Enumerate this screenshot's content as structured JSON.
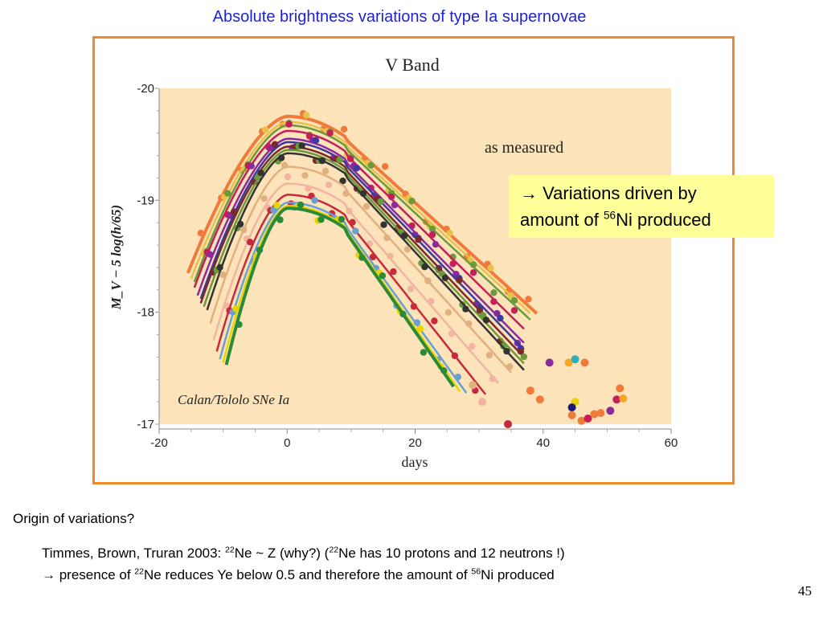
{
  "slide": {
    "title": "Absolute brightness variations of type Ia supernovae",
    "question": "Origin of variations?",
    "page_number": "45"
  },
  "callout": {
    "arrow": "→",
    "line1": "Variations driven by",
    "line2_prefix": "amount of ",
    "isotope_mass": "56",
    "isotope_symbol": "Ni",
    "line2_suffix": " produced"
  },
  "notes": {
    "line1": {
      "lead": "Timmes, Brown, Truran 2003: ",
      "iso1_mass": "22",
      "iso1_rest": "Ne ~ Z    (why?)  (",
      "iso2_mass": "22",
      "iso2_rest": "Ne has 10 protons and 12 neutrons !)"
    },
    "line2": {
      "arrow": "→",
      "lead": " presence of ",
      "iso1_mass": "22",
      "iso1_rest": "Ne reduces Ye below 0.5 and therefore the amount of ",
      "iso2_mass": "56",
      "iso2_rest": "Ni produced"
    }
  },
  "colors": {
    "title": "#1f23d6",
    "frame": "#f0882e",
    "plot_background": "#fde3b9",
    "callout_background": "#ffff99"
  },
  "chart_data": {
    "type": "line",
    "title": "V Band",
    "annotation": "as measured",
    "source_label": "Calan/Tololo SNe Ia",
    "xlabel": "days",
    "ylabel": "M_V − 5 log(h/65)",
    "xlim": [
      -20,
      60
    ],
    "ylim": [
      -20,
      -17
    ],
    "y_inverted": true,
    "grid": false,
    "x_ticks": [
      -20,
      0,
      20,
      40,
      60
    ],
    "y_ticks": [
      -20,
      -19,
      -18,
      -17
    ],
    "x_tick_labels": [
      "-20",
      "0",
      "20",
      "40",
      "60"
    ],
    "y_tick_labels": [
      "-20",
      "-19",
      "-18",
      "-17"
    ],
    "series": [
      {
        "color": "#f07a3a",
        "peak": -19.75,
        "t0": -15.5,
        "t_end": 39,
        "decline": 0.052
      },
      {
        "color": "#e8c14a",
        "peak": -19.7,
        "t0": -15,
        "t_end": 38,
        "decline": 0.052
      },
      {
        "color": "#6a9a3a",
        "peak": -19.67,
        "t0": -14.5,
        "t_end": 38,
        "decline": 0.053
      },
      {
        "color": "#c41e5b",
        "peak": -19.62,
        "t0": -14.5,
        "t_end": 37,
        "decline": 0.056
      },
      {
        "color": "#8a2aa0",
        "peak": -19.55,
        "t0": -14,
        "t_end": 37,
        "decline": 0.058
      },
      {
        "color": "#3a3aa0",
        "peak": -19.52,
        "t0": -13.5,
        "t_end": 37,
        "decline": 0.059
      },
      {
        "color": "#7a2a2a",
        "peak": -19.48,
        "t0": -13.5,
        "t_end": 37,
        "decline": 0.06
      },
      {
        "color": "#6a9a3a",
        "peak": -19.45,
        "t0": -13,
        "t_end": 37,
        "decline": 0.061
      },
      {
        "color": "#333333",
        "peak": -19.42,
        "t0": -12.5,
        "t_end": 37,
        "decline": 0.062
      },
      {
        "color": "#e0b080",
        "peak": -19.3,
        "t0": -12,
        "t_end": 35,
        "decline": 0.063
      },
      {
        "color": "#f0b4a0",
        "peak": -19.15,
        "t0": -11.5,
        "t_end": 33,
        "decline": 0.066
      },
      {
        "color": "#c8283c",
        "peak": -19.05,
        "t0": -11,
        "t_end": 31,
        "decline": 0.072
      },
      {
        "color": "#6aa0d0",
        "peak": -18.98,
        "t0": -10.5,
        "t_end": 28,
        "decline": 0.079
      },
      {
        "color": "#e8d400",
        "peak": -18.95,
        "t0": -10,
        "t_end": 27,
        "decline": 0.081
      },
      {
        "color": "#2a8a3a",
        "peak": -18.93,
        "t0": -9.5,
        "t_end": 26,
        "decline": 0.082
      }
    ],
    "extra_points": [
      {
        "x": 41,
        "y": -17.55,
        "color": "#8a2aa0"
      },
      {
        "x": 44,
        "y": -17.55,
        "color": "#f5a623"
      },
      {
        "x": 45,
        "y": -17.58,
        "color": "#2ab0c0"
      },
      {
        "x": 45,
        "y": -17.2,
        "color": "#e8d400"
      },
      {
        "x": 46.5,
        "y": -17.55,
        "color": "#f07a3a"
      },
      {
        "x": 38,
        "y": -17.3,
        "color": "#f07a3a"
      },
      {
        "x": 39.5,
        "y": -17.22,
        "color": "#f07a3a"
      },
      {
        "x": 44.5,
        "y": -17.15,
        "color": "#1a1a7a"
      },
      {
        "x": 44.5,
        "y": -17.08,
        "color": "#f07a3a"
      },
      {
        "x": 46,
        "y": -17.03,
        "color": "#f07a3a"
      },
      {
        "x": 47,
        "y": -17.05,
        "color": "#c41e5b"
      },
      {
        "x": 48,
        "y": -17.09,
        "color": "#f07a3a"
      },
      {
        "x": 49,
        "y": -17.1,
        "color": "#f07a3a"
      },
      {
        "x": 50.5,
        "y": -17.12,
        "color": "#8a2aa0"
      },
      {
        "x": 51.5,
        "y": -17.22,
        "color": "#c41e5b"
      },
      {
        "x": 52.5,
        "y": -17.23,
        "color": "#f5a623"
      },
      {
        "x": 52,
        "y": -17.32,
        "color": "#f07a3a"
      },
      {
        "x": 34.5,
        "y": -17.0,
        "color": "#c8283c"
      },
      {
        "x": 30.5,
        "y": -17.2,
        "color": "#f0b4a0"
      },
      {
        "x": 29,
        "y": -17.35,
        "color": "#e0b080"
      }
    ]
  }
}
